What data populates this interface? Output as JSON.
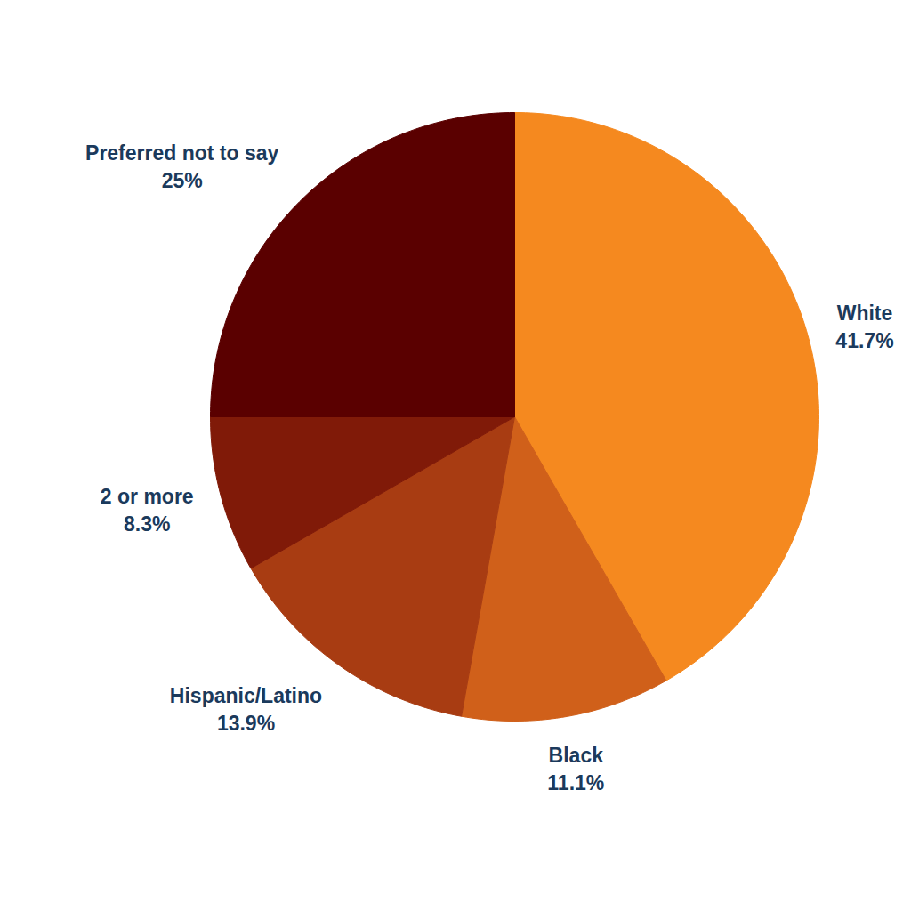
{
  "chart_data": {
    "type": "pie",
    "categories": [
      "White",
      "Black",
      "Hispanic/Latino",
      "2 or more",
      "Preferred not to say"
    ],
    "values": [
      41.7,
      11.1,
      13.9,
      8.3,
      25
    ],
    "value_labels": [
      "41.7%",
      "11.1%",
      "13.9%",
      "8.3%",
      "25%"
    ],
    "colors": [
      "#f5891f",
      "#d0601a",
      "#a83c12",
      "#801a08",
      "#5a0000"
    ],
    "data_labels": true
  }
}
